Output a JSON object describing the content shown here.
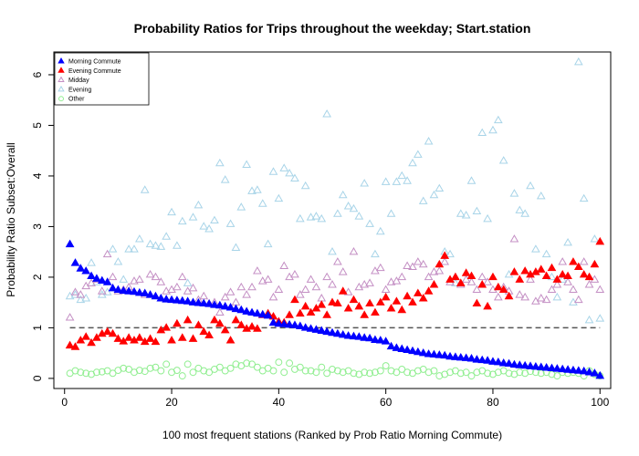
{
  "chart_data": {
    "type": "scatter",
    "title": "Probability Ratios for Trips throughout the weekday; Start.station",
    "xlabel": "100 most frequent stations (Ranked by Prob Ratio Morning Commute)",
    "ylabel": "Probability Ratio Subset:Overall",
    "xlim": [
      -2,
      102
    ],
    "ylim": [
      -0.2,
      6.45
    ],
    "xticks": [
      0,
      20,
      40,
      60,
      80,
      100
    ],
    "yticks": [
      0,
      1,
      2,
      3,
      4,
      5,
      6
    ],
    "reference_line": {
      "y": 1,
      "style": "dashed",
      "color": "#555555"
    },
    "legend_position": "top-left",
    "series": [
      {
        "name": "Morning Commute",
        "marker": "filled-triangle",
        "color": "#0000ff",
        "values": [
          2.65,
          2.28,
          2.17,
          2.12,
          2.02,
          1.97,
          1.93,
          1.9,
          1.78,
          1.75,
          1.73,
          1.72,
          1.71,
          1.69,
          1.68,
          1.65,
          1.62,
          1.58,
          1.56,
          1.55,
          1.54,
          1.53,
          1.52,
          1.5,
          1.49,
          1.48,
          1.47,
          1.45,
          1.44,
          1.42,
          1.4,
          1.37,
          1.35,
          1.32,
          1.3,
          1.28,
          1.26,
          1.24,
          1.1,
          1.08,
          1.07,
          1.06,
          1.05,
          1.03,
          1.0,
          0.98,
          0.96,
          0.94,
          0.92,
          0.9,
          0.88,
          0.86,
          0.84,
          0.83,
          0.82,
          0.8,
          0.79,
          0.76,
          0.75,
          0.73,
          0.63,
          0.6,
          0.58,
          0.56,
          0.54,
          0.52,
          0.5,
          0.48,
          0.47,
          0.46,
          0.45,
          0.43,
          0.42,
          0.41,
          0.4,
          0.39,
          0.37,
          0.36,
          0.35,
          0.33,
          0.32,
          0.3,
          0.29,
          0.27,
          0.26,
          0.25,
          0.24,
          0.23,
          0.22,
          0.21,
          0.2,
          0.19,
          0.18,
          0.17,
          0.16,
          0.15,
          0.14,
          0.12,
          0.1,
          0.05
        ]
      },
      {
        "name": "Evening Commute",
        "marker": "filled-triangle",
        "color": "#ff0000",
        "values": [
          0.65,
          0.62,
          0.75,
          0.82,
          0.7,
          0.8,
          0.88,
          0.92,
          0.88,
          0.78,
          0.73,
          0.8,
          0.75,
          0.8,
          0.72,
          0.78,
          0.72,
          0.95,
          1.0,
          0.75,
          1.08,
          0.8,
          1.15,
          0.78,
          1.05,
          0.92,
          0.85,
          1.15,
          1.08,
          0.95,
          0.75,
          1.15,
          1.05,
          0.98,
          1.02,
          0.98,
          1.25,
          1.28,
          1.22,
          1.12,
          1.1,
          1.25,
          1.55,
          1.28,
          1.42,
          1.3,
          1.38,
          1.45,
          1.25,
          1.5,
          1.48,
          1.72,
          1.38,
          1.55,
          1.42,
          1.25,
          1.48,
          1.3,
          1.5,
          1.6,
          1.38,
          1.52,
          1.35,
          1.62,
          1.5,
          1.68,
          1.58,
          1.72,
          1.85,
          2.25,
          2.42,
          1.95,
          2.0,
          1.88,
          2.08,
          2.02,
          1.48,
          1.85,
          1.42,
          2.0,
          1.8,
          1.75,
          1.62,
          2.1,
          1.95,
          2.12,
          2.05,
          2.1,
          2.15,
          2.02,
          2.18,
          1.95,
          2.05,
          2.02,
          2.3,
          2.2,
          2.05,
          2.0,
          2.25,
          2.7
        ]
      },
      {
        "name": "Midday",
        "marker": "open-triangle",
        "color": "#c48fc4",
        "values": [
          1.2,
          1.7,
          1.65,
          1.82,
          1.88,
          1.95,
          1.72,
          2.45,
          2.0,
          1.72,
          1.75,
          1.8,
          1.92,
          1.95,
          1.65,
          2.05,
          2.0,
          1.9,
          1.72,
          1.75,
          1.8,
          2.0,
          1.72,
          1.78,
          1.55,
          1.62,
          1.48,
          1.5,
          1.3,
          1.6,
          1.7,
          1.5,
          1.8,
          1.65,
          1.8,
          2.12,
          1.92,
          1.95,
          1.6,
          1.75,
          2.22,
          2.0,
          2.05,
          1.65,
          1.75,
          1.95,
          1.8,
          1.58,
          2.0,
          1.85,
          2.3,
          2.1,
          1.7,
          2.5,
          1.8,
          1.85,
          1.88,
          2.12,
          2.18,
          1.75,
          1.9,
          1.92,
          2.0,
          2.22,
          2.2,
          2.3,
          2.25,
          2.0,
          2.1,
          2.12,
          2.3,
          1.9,
          2.0,
          1.85,
          1.95,
          1.9,
          1.75,
          2.0,
          1.9,
          1.75,
          1.6,
          1.8,
          1.72,
          2.75,
          1.65,
          1.6,
          1.95,
          1.52,
          1.58,
          1.55,
          1.75,
          1.85,
          2.3,
          1.9,
          1.75,
          1.55,
          2.3,
          1.85,
          1.95,
          1.75
        ]
      },
      {
        "name": "Evening",
        "marker": "open-triangle",
        "color": "#a8d4e8",
        "values": [
          1.62,
          1.65,
          1.55,
          1.58,
          2.28,
          1.9,
          1.65,
          1.7,
          2.55,
          2.3,
          1.95,
          2.55,
          2.55,
          2.75,
          3.72,
          2.65,
          2.62,
          2.6,
          2.8,
          3.28,
          2.62,
          3.1,
          1.88,
          3.18,
          3.42,
          3.0,
          2.95,
          3.12,
          4.25,
          3.92,
          3.05,
          2.58,
          3.38,
          4.22,
          3.7,
          3.72,
          3.45,
          2.65,
          4.08,
          3.55,
          4.15,
          4.05,
          3.95,
          3.15,
          3.8,
          3.18,
          3.2,
          3.15,
          5.22,
          2.5,
          3.25,
          3.62,
          3.4,
          3.35,
          3.2,
          3.85,
          3.05,
          2.45,
          2.9,
          3.88,
          3.25,
          3.88,
          4.0,
          3.9,
          4.25,
          4.42,
          3.5,
          4.68,
          3.62,
          3.75,
          2.5,
          2.45,
          1.88,
          3.25,
          3.22,
          3.9,
          3.3,
          4.85,
          3.15,
          4.9,
          5.1,
          4.3,
          2.05,
          3.65,
          3.32,
          3.25,
          3.8,
          2.55,
          3.6,
          2.45,
          2.0,
          1.6,
          1.95,
          2.68,
          1.5,
          6.25,
          3.55,
          1.15,
          2.75,
          1.18
        ]
      },
      {
        "name": "Other",
        "marker": "open-circle",
        "color": "#90ee90",
        "values": [
          0.1,
          0.15,
          0.12,
          0.1,
          0.08,
          0.12,
          0.13,
          0.15,
          0.1,
          0.16,
          0.2,
          0.18,
          0.12,
          0.16,
          0.14,
          0.2,
          0.22,
          0.15,
          0.28,
          0.12,
          0.16,
          0.05,
          0.28,
          0.12,
          0.2,
          0.15,
          0.12,
          0.18,
          0.22,
          0.15,
          0.2,
          0.28,
          0.25,
          0.3,
          0.28,
          0.22,
          0.15,
          0.2,
          0.15,
          0.32,
          0.12,
          0.3,
          0.18,
          0.22,
          0.15,
          0.15,
          0.12,
          0.22,
          0.1,
          0.18,
          0.15,
          0.12,
          0.15,
          0.1,
          0.08,
          0.12,
          0.1,
          0.12,
          0.15,
          0.25,
          0.15,
          0.12,
          0.18,
          0.12,
          0.1,
          0.15,
          0.18,
          0.12,
          0.15,
          0.05,
          0.08,
          0.12,
          0.15,
          0.1,
          0.12,
          0.05,
          0.12,
          0.15,
          0.1,
          0.08,
          0.12,
          0.15,
          0.1,
          0.08,
          0.12,
          0.1,
          0.14,
          0.12,
          0.1,
          0.12,
          0.08,
          0.05,
          0.12,
          0.1,
          0.12,
          0.1,
          0.05,
          0.15,
          0.08,
          0.05
        ]
      }
    ]
  }
}
